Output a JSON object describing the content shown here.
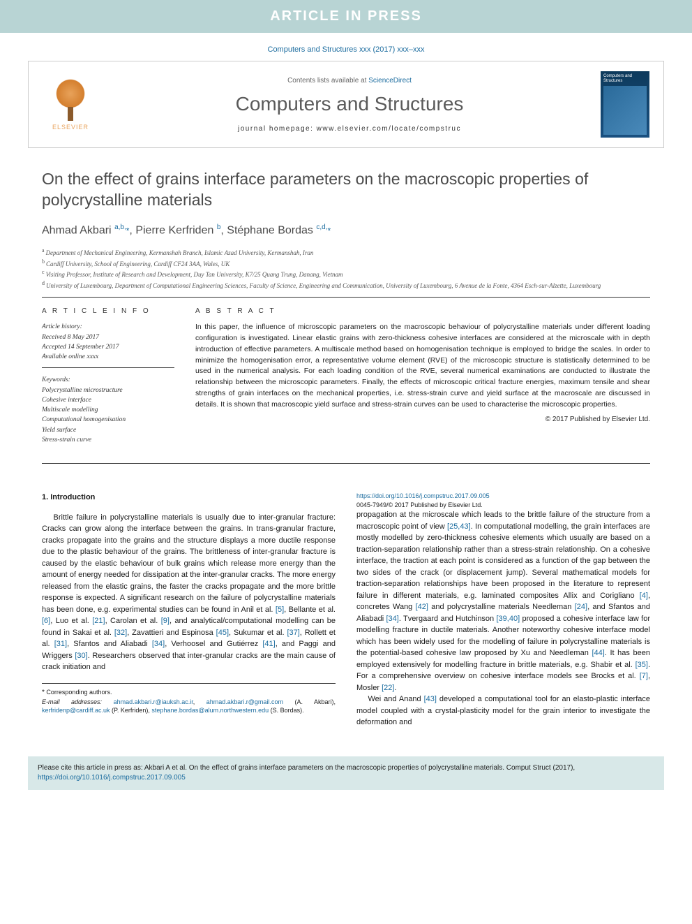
{
  "banner": {
    "text": "ARTICLE IN PRESS",
    "bg": "#b8d4d4",
    "color": "#ffffff"
  },
  "citation_header": "Computers and Structures xxx (2017) xxx–xxx",
  "journal_box": {
    "contents_prefix": "Contents lists available at ",
    "contents_link": "ScienceDirect",
    "journal_name": "Computers and Structures",
    "homepage_prefix": "journal homepage: ",
    "homepage_url": "www.elsevier.com/locate/compstruc",
    "publisher_label": "ELSEVIER",
    "cover_title": "Computers and Structures"
  },
  "article": {
    "title": "On the effect of grains interface parameters on the macroscopic properties of polycrystalline materials",
    "authors_html": "Ahmad Akbari <sup>a,b,</sup><span class='star'>*</span>, Pierre Kerfriden <sup>b</sup>, Stéphane Bordas <sup>c,d,</sup><span class='star'>*</span>",
    "affiliations": [
      {
        "sup": "a",
        "text": "Department of Mechanical Engineering, Kermanshah Branch, Islamic Azad University, Kermanshah, Iran"
      },
      {
        "sup": "b",
        "text": "Cardiff University, School of Engineering, Cardiff CF24 3AA, Wales, UK"
      },
      {
        "sup": "c",
        "text": "Visiting Professor, Institute of Research and Development, Duy Tan University, K7/25 Quang Trung, Danang, Vietnam"
      },
      {
        "sup": "d",
        "text": "University of Luxembourg, Department of Computational Engineering Sciences, Faculty of Science, Engineering and Communication, University of Luxembourg, 6 Avenue de la Fonte, 4364 Esch-sur-Alzette, Luxembourg"
      }
    ]
  },
  "article_info": {
    "heading": "A R T I C L E   I N F O",
    "history_label": "Article history:",
    "received": "Received 8 May 2017",
    "accepted": "Accepted 14 September 2017",
    "online": "Available online xxxx",
    "keywords_label": "Keywords:",
    "keywords": [
      "Polycrystalline microstructure",
      "Cohesive interface",
      "Multiscale modelling",
      "Computational homogenisation",
      "Yield surface",
      "Stress-strain curve"
    ]
  },
  "abstract": {
    "heading": "A B S T R A C T",
    "text": "In this paper, the influence of microscopic parameters on the macroscopic behaviour of polycrystalline materials under different loading configuration is investigated. Linear elastic grains with zero-thickness cohesive interfaces are considered at the microscale with in depth introduction of effective parameters. A multiscale method based on homogenisation technique is employed to bridge the scales. In order to minimize the homogenisation error, a representative volume element (RVE) of the microscopic structure is statistically determined to be used in the numerical analysis. For each loading condition of the RVE, several numerical examinations are conducted to illustrate the relationship between the microscopic parameters. Finally, the effects of microscopic critical fracture energies, maximum tensile and shear strengths of grain interfaces on the mechanical properties, i.e. stress-strain curve and yield surface at the macroscale are discussed in details. It is shown that macroscopic yield surface and stress-strain curves can be used to characterise the microscopic properties.",
    "copyright": "© 2017 Published by Elsevier Ltd."
  },
  "intro": {
    "heading": "1. Introduction",
    "col1_p1": "Brittle failure in polycrystalline materials is usually due to inter-granular fracture: Cracks can grow along the interface between the grains. In trans-granular fracture, cracks propagate into the grains and the structure displays a more ductile response due to the plastic behaviour of the grains. The brittleness of inter-granular fracture is caused by the elastic behaviour of bulk grains which release more energy than the amount of energy needed for dissipation at the inter-granular cracks. The more energy released from the elastic grains, the faster the cracks propagate and the more brittle response is expected. A significant research on the failure of polycrystalline materials has been done, e.g. experimental studies can be found in Anil et al. [5], Bellante et al. [6], Luo et al. [21], Carolan et al. [9], and analytical/computational modelling can be found in Sakai et al. [32], Zavattieri and Espinosa [45], Sukumar et al. [37], Rollett et al. [31], Sfantos and Aliabadi [34], Verhoosel and Gutiérrez [41], and Paggi and Wriggers [30]. Researchers observed that inter-granular cracks are the main cause of crack initiation and",
    "col2_p1": "propagation at the microscale which leads to the brittle failure of the structure from a macroscopic point of view [25,43]. In computational modelling, the grain interfaces are mostly modelled by zero-thickness cohesive elements which usually are based on a traction-separation relationship rather than a stress-strain relationship. On a cohesive interface, the traction at each point is considered as a function of the gap between the two sides of the crack (or displacement jump). Several mathematical models for traction-separation relationships have been proposed in the literature to represent failure in different materials, e.g. laminated composites Allix and Corigliano [4], concretes Wang [42] and polycrystalline materials Needleman [24], and Sfantos and Aliabadi [34]. Tvergaard and Hutchinson [39,40] proposed a cohesive interface law for modelling fracture in ductile materials. Another noteworthy cohesive interface model which has been widely used for the modelling of failure in polycrystalline materials is the potential-based cohesive law proposed by Xu and Needleman [44]. It has been employed extensively for modelling fracture in brittle materials, e.g. Shabir et al. [35]. For a comprehensive overview on cohesive interface models see Brocks et al. [7], Mosler [22].",
    "col2_p2": "Wei and Anand [43] developed a computational tool for an elasto-plastic interface model coupled with a crystal-plasticity model for the grain interior to investigate the deformation and"
  },
  "footnotes": {
    "corresponding": "Corresponding authors.",
    "email_label": "E-mail addresses:",
    "emails": [
      {
        "addr": "ahmad.akbari.r@iauksh.ac.ir",
        "sep": ", "
      },
      {
        "addr": "ahmad.akbari.r@gmail.com",
        "sep": " "
      }
    ],
    "email_tail1": "(A. Akbari), ",
    "email2": "kerfridenp@cardiff.ac.uk",
    "email_tail2": " (P. Kerfriden), ",
    "email3": "stephane.bordas@alum.northwestern.edu",
    "email_tail3": " (S. Bordas)."
  },
  "doi": {
    "url": "https://doi.org/10.1016/j.compstruc.2017.09.005",
    "issn_line": "0045-7949/© 2017 Published by Elsevier Ltd."
  },
  "cite_box": {
    "text_prefix": "Please cite this article in press as: Akbari A et al. On the effect of grains interface parameters on the macroscopic properties of polycrystalline materials. Comput Struct (2017), ",
    "url": "https://doi.org/10.1016/j.compstruc.2017.09.005"
  },
  "colors": {
    "link": "#1a6b9e",
    "banner_bg": "#b8d4d4",
    "citebox_bg": "#d8e8e8",
    "text": "#1a1a1a",
    "heading_gray": "#4a4a4a"
  }
}
